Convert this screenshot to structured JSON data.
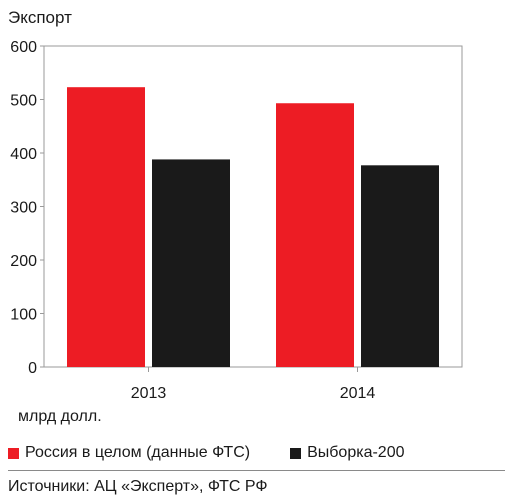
{
  "chart_data": {
    "type": "bar",
    "title": "Экспорт",
    "ylabel": "",
    "unit": "млрд долл.",
    "categories": [
      "2013",
      "2014"
    ],
    "ylim": [
      0,
      600
    ],
    "yticks": [
      0,
      100,
      200,
      300,
      400,
      500,
      600
    ],
    "grid": false,
    "legend_placement": "bottom",
    "series": [
      {
        "name": "Россия в целом (данные ФТС)",
        "color": "#ed1c24",
        "values": [
          523,
          493
        ]
      },
      {
        "name": "Выборка-200",
        "color": "#1a1a1a",
        "values": [
          388,
          377
        ]
      }
    ]
  },
  "source": "Источники: АЦ «Эксперт», ФТС РФ"
}
